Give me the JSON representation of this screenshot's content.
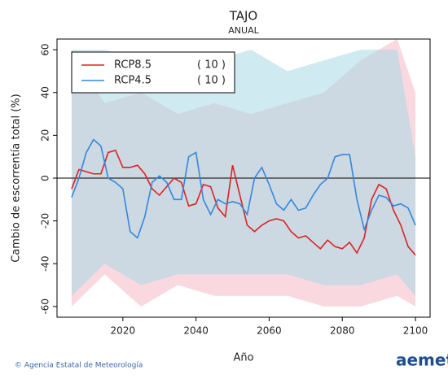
{
  "chart_data": {
    "type": "line",
    "title": "TAJO",
    "subtitle": "ANUAL",
    "xlabel": "Año",
    "ylabel": "Cambio de escorrentía total (%)",
    "footer": "© Agencia Estatal de Meteorología",
    "logo": "aemet",
    "legend": "upper left",
    "x": [
      2006,
      2008,
      2010,
      2012,
      2014,
      2016,
      2018,
      2020,
      2022,
      2024,
      2026,
      2028,
      2030,
      2032,
      2034,
      2036,
      2038,
      2040,
      2042,
      2044,
      2046,
      2048,
      2050,
      2052,
      2054,
      2056,
      2058,
      2060,
      2062,
      2064,
      2066,
      2068,
      2070,
      2072,
      2074,
      2076,
      2078,
      2080,
      2082,
      2084,
      2086,
      2088,
      2090,
      2092,
      2094,
      2096,
      2098,
      2100
    ],
    "band_x": [
      2006,
      2015,
      2025,
      2035,
      2045,
      2055,
      2065,
      2075,
      2085,
      2095,
      2100
    ],
    "series": [
      {
        "name": "RCP8.5",
        "runs": "( 10 )",
        "color": "#dd2222",
        "band_color": "#f4b8c4",
        "values": [
          -5,
          4,
          3,
          2,
          2,
          12,
          13,
          5,
          5,
          6,
          2,
          -5,
          -8,
          -4,
          0,
          -2,
          -13,
          -12,
          -3,
          -4,
          -14,
          -18,
          6,
          -8,
          -22,
          -25,
          -22,
          -20,
          -19,
          -20,
          -25,
          -28,
          -27,
          -30,
          -33,
          -29,
          -32,
          -33,
          -30,
          -35,
          -28,
          -10,
          -3,
          -5,
          -15,
          -22,
          -32,
          -36
        ],
        "band_upper": [
          60,
          35,
          40,
          30,
          35,
          30,
          35,
          40,
          55,
          65,
          40
        ],
        "band_lower": [
          -60,
          -45,
          -60,
          -50,
          -55,
          -55,
          -55,
          -60,
          -60,
          -55,
          -60
        ]
      },
      {
        "name": "RCP4.5",
        "runs": "( 10 )",
        "color": "#3388dd",
        "band_color": "#a8d8e4",
        "values": [
          -9,
          0,
          12,
          18,
          15,
          0,
          -2,
          -5,
          -25,
          -28,
          -18,
          -2,
          1,
          -2,
          -10,
          -10,
          10,
          12,
          -10,
          -17,
          -10,
          -12,
          -11,
          -12,
          -17,
          0,
          5,
          -3,
          -12,
          -15,
          -10,
          -15,
          -14,
          -8,
          -3,
          0,
          10,
          11,
          11,
          -10,
          -24,
          -15,
          -8,
          -9,
          -13,
          -12,
          -14,
          -22
        ],
        "band_upper": [
          60,
          60,
          55,
          45,
          55,
          60,
          50,
          55,
          60,
          60,
          10
        ],
        "band_lower": [
          -55,
          -40,
          -50,
          -45,
          -45,
          -45,
          -45,
          -50,
          -50,
          -45,
          -55
        ]
      }
    ],
    "xlim": [
      2002,
      2104
    ],
    "xticks": [
      2020,
      2040,
      2060,
      2080,
      2100
    ],
    "ylim": [
      -65,
      65
    ],
    "yticks": [
      -60,
      -40,
      -20,
      0,
      20,
      40,
      60
    ]
  }
}
